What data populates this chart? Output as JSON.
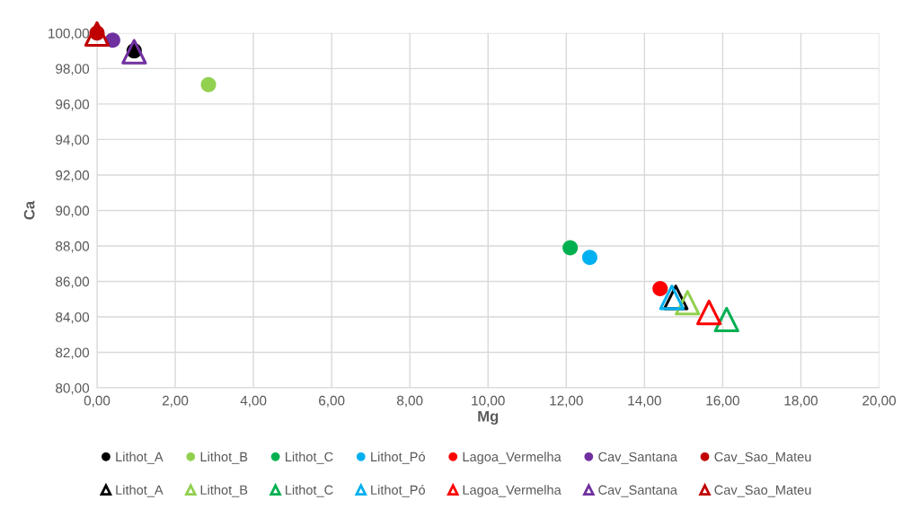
{
  "chart_data": {
    "type": "scatter",
    "xlabel": "Mg",
    "ylabel": "Ca",
    "xlim": [
      0,
      20
    ],
    "ylim": [
      80,
      100
    ],
    "xticks": [
      {
        "value": 0,
        "label": "0,00"
      },
      {
        "value": 2,
        "label": "2,00"
      },
      {
        "value": 4,
        "label": "4,00"
      },
      {
        "value": 6,
        "label": "6,00"
      },
      {
        "value": 8,
        "label": "8,00"
      },
      {
        "value": 10,
        "label": "10,00"
      },
      {
        "value": 12,
        "label": "12,00"
      },
      {
        "value": 14,
        "label": "14,00"
      },
      {
        "value": 16,
        "label": "16,00"
      },
      {
        "value": 18,
        "label": "18,00"
      },
      {
        "value": 20,
        "label": "20,00"
      }
    ],
    "yticks": [
      {
        "value": 80,
        "label": "80,00"
      },
      {
        "value": 82,
        "label": "82,00"
      },
      {
        "value": 84,
        "label": "84,00"
      },
      {
        "value": 86,
        "label": "86,00"
      },
      {
        "value": 88,
        "label": "88,00"
      },
      {
        "value": 90,
        "label": "90,00"
      },
      {
        "value": 92,
        "label": "92,00"
      },
      {
        "value": 94,
        "label": "94,00"
      },
      {
        "value": 96,
        "label": "96,00"
      },
      {
        "value": 98,
        "label": "98,00"
      },
      {
        "value": 100,
        "label": "100,00"
      }
    ],
    "grid": true,
    "legend": "bottom",
    "series": [
      {
        "name": "Lithot_A",
        "color": "#000000",
        "marker": "circle",
        "x": [
          0.95
        ],
        "values": [
          99.0
        ]
      },
      {
        "name": "Lithot_B",
        "color": "#92d050",
        "marker": "circle",
        "x": [
          2.85
        ],
        "values": [
          97.1
        ]
      },
      {
        "name": "Lithot_C",
        "color": "#00b050",
        "marker": "circle",
        "x": [
          12.1
        ],
        "values": [
          87.9
        ]
      },
      {
        "name": "Lithot_Pó",
        "color": "#00b0f0",
        "marker": "circle",
        "x": [
          12.6
        ],
        "values": [
          87.35
        ]
      },
      {
        "name": "Lagoa_Vermelha",
        "color": "#ff0000",
        "marker": "circle",
        "x": [
          14.4
        ],
        "values": [
          85.6
        ]
      },
      {
        "name": "Cav_Santana",
        "color": "#7030a0",
        "marker": "circle",
        "x": [
          0.4
        ],
        "values": [
          99.6
        ]
      },
      {
        "name": "Cav_Sao_Mateu",
        "color": "#c00000",
        "marker": "circle",
        "x": [
          0.0
        ],
        "values": [
          100.0
        ]
      },
      {
        "name": "Lithot_A",
        "color": "#000000",
        "marker": "triangle",
        "x": [
          14.8
        ],
        "values": [
          85.1
        ]
      },
      {
        "name": "Lithot_B",
        "color": "#92d050",
        "marker": "triangle",
        "x": [
          15.1
        ],
        "values": [
          84.8
        ]
      },
      {
        "name": "Lithot_C",
        "color": "#00b050",
        "marker": "triangle",
        "x": [
          16.1
        ],
        "values": [
          83.85
        ]
      },
      {
        "name": "Lithot_Pó",
        "color": "#00b0f0",
        "marker": "triangle",
        "x": [
          14.7
        ],
        "values": [
          85.1
        ]
      },
      {
        "name": "Lagoa_Vermelha",
        "color": "#ff0000",
        "marker": "triangle",
        "x": [
          15.65
        ],
        "values": [
          84.25
        ]
      },
      {
        "name": "Cav_Santana",
        "color": "#7030a0",
        "marker": "triangle",
        "x": [
          0.95
        ],
        "values": [
          98.95
        ]
      },
      {
        "name": "Cav_Sao_Mateu",
        "color": "#c00000",
        "marker": "triangle",
        "x": [
          0.0
        ],
        "values": [
          99.95
        ]
      }
    ]
  }
}
